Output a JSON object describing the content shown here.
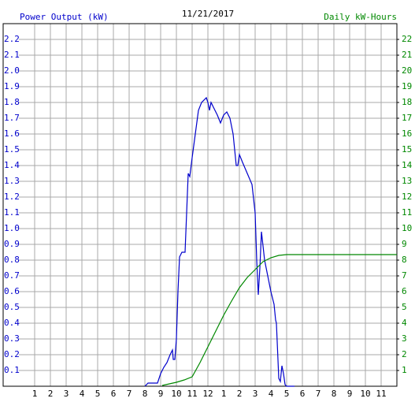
{
  "chart_data": {
    "type": "line",
    "title": "11/21/2017",
    "ylabel": "Power Output (kW)",
    "y2label": "Daily kW-Hours",
    "grid": true,
    "xlim": [
      -1,
      24
    ],
    "xticks": [
      1,
      2,
      3,
      4,
      5,
      6,
      7,
      8,
      9,
      10,
      11,
      12,
      {
        "value": 13,
        "label": "1"
      },
      {
        "value": 14,
        "label": "2"
      },
      {
        "value": 15,
        "label": "3"
      },
      {
        "value": 16,
        "label": "4"
      },
      {
        "value": 17,
        "label": "5"
      },
      {
        "value": 18,
        "label": "6"
      },
      {
        "value": 19,
        "label": "7"
      },
      {
        "value": 20,
        "label": "8"
      },
      {
        "value": 21,
        "label": "9"
      },
      {
        "value": 22,
        "label": "10"
      },
      {
        "value": 23,
        "label": "11"
      }
    ],
    "ylim": [
      0,
      2.3
    ],
    "yticks": [
      0.1,
      0.2,
      0.3,
      0.4,
      0.5,
      0.6,
      0.7,
      0.8,
      0.9,
      {
        "value": 1,
        "label": "1.0"
      },
      1.1,
      1.2,
      1.3,
      1.4,
      1.5,
      1.6,
      1.7,
      1.8,
      1.9,
      {
        "value": 2,
        "label": "2.0"
      },
      2.1,
      2.2
    ],
    "y2lim": [
      0,
      23
    ],
    "y2ticks": [
      1,
      2,
      3,
      4,
      5,
      6,
      7,
      8,
      9,
      10,
      11,
      12,
      13,
      14,
      15,
      16,
      17,
      18,
      19,
      20,
      21,
      22
    ],
    "series": [
      {
        "name": "Power Output (kW)",
        "color": "#0000cc",
        "x": [
          8,
          8.2,
          8.8,
          9,
          9.2,
          9.4,
          9.6,
          9.75,
          9.8,
          9.9,
          10,
          10.1,
          10.2,
          10.35,
          10.55,
          10.65,
          10.75,
          10.85,
          11,
          11.2,
          11.4,
          11.6,
          11.9,
          12,
          12.1,
          12.2,
          12.4,
          12.6,
          12.8,
          13,
          13.2,
          13.4,
          13.6,
          13.8,
          13.9,
          14,
          14.2,
          14.5,
          14.8,
          15,
          15.1,
          15.2,
          15.3,
          15.4,
          15.6,
          15.8,
          16,
          16.2,
          16.3,
          16.35,
          16.5,
          16.6,
          16.7,
          16.8,
          16.9,
          17,
          17.5
        ],
        "values": [
          0,
          0.02,
          0.02,
          0.08,
          0.12,
          0.15,
          0.2,
          0.23,
          0.17,
          0.17,
          0.3,
          0.6,
          0.82,
          0.85,
          0.85,
          1.1,
          1.35,
          1.33,
          1.45,
          1.6,
          1.75,
          1.8,
          1.83,
          1.8,
          1.75,
          1.8,
          1.76,
          1.72,
          1.67,
          1.72,
          1.74,
          1.7,
          1.6,
          1.4,
          1.4,
          1.47,
          1.42,
          1.35,
          1.28,
          1.1,
          0.8,
          0.58,
          0.75,
          0.98,
          0.8,
          0.7,
          0.6,
          0.52,
          0.42,
          0.4,
          0.05,
          0.03,
          0.13,
          0.08,
          0.01,
          0,
          0
        ]
      },
      {
        "name": "Daily kW-Hours",
        "color": "#008800",
        "axis": "y2",
        "x": [
          9.1,
          10,
          10.5,
          11,
          11.5,
          12,
          12.5,
          13,
          13.5,
          14,
          14.5,
          15,
          15.5,
          16,
          16.5,
          17,
          24
        ],
        "values": [
          0.05,
          0.25,
          0.4,
          0.6,
          1.5,
          2.5,
          3.5,
          4.5,
          5.4,
          6.25,
          6.9,
          7.4,
          7.9,
          8.15,
          8.3,
          8.35,
          8.35
        ]
      }
    ]
  }
}
